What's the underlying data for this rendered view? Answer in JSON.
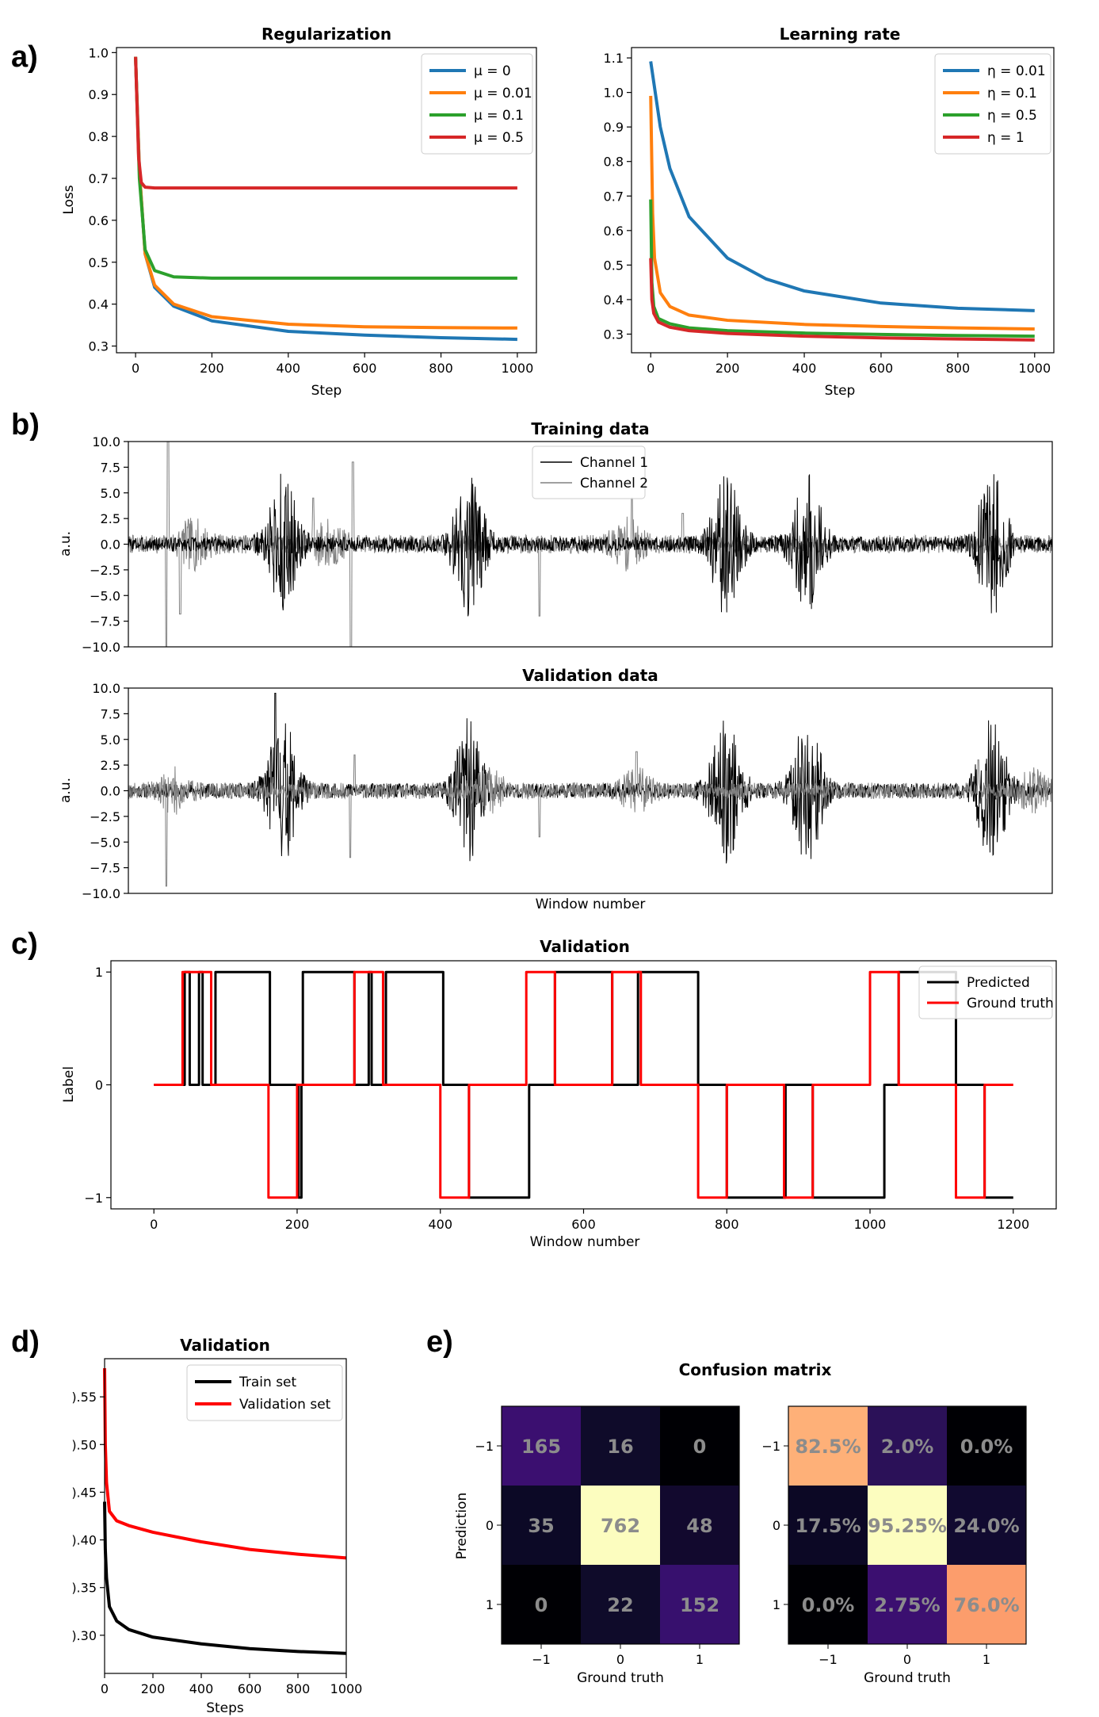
{
  "panel_letters": [
    "a)",
    "b)",
    "c)",
    "d)",
    "e)"
  ],
  "chart_data": [
    {
      "id": "a1",
      "type": "line",
      "title": "Regularization",
      "xlabel": "Step",
      "ylabel": "Loss",
      "xlim": [
        0,
        1000
      ],
      "ylim": [
        0.3,
        1.0
      ],
      "xticks": [
        0,
        200,
        400,
        600,
        800,
        1000
      ],
      "yticks": [
        0.3,
        0.4,
        0.5,
        0.6,
        0.7,
        0.8,
        0.9,
        1.0
      ],
      "ytick_labels": [
        "0.3",
        "0.4",
        "0.5",
        "0.6",
        "0.7",
        "0.8",
        "0.9",
        "1.0"
      ],
      "legend_position": "top-right",
      "series": [
        {
          "name": "μ = 0",
          "color": "#1f77b4",
          "x": [
            0,
            10,
            25,
            50,
            100,
            200,
            400,
            600,
            800,
            1000
          ],
          "y": [
            0.99,
            0.72,
            0.52,
            0.44,
            0.395,
            0.36,
            0.335,
            0.326,
            0.32,
            0.316
          ]
        },
        {
          "name": "μ = 0.01",
          "color": "#ff7f0e",
          "x": [
            0,
            10,
            25,
            50,
            100,
            200,
            400,
            600,
            800,
            1000
          ],
          "y": [
            0.99,
            0.72,
            0.52,
            0.445,
            0.4,
            0.37,
            0.352,
            0.346,
            0.344,
            0.343
          ]
        },
        {
          "name": "μ = 0.1",
          "color": "#2ca02c",
          "x": [
            0,
            10,
            25,
            50,
            100,
            200,
            400,
            600,
            800,
            1000
          ],
          "y": [
            0.99,
            0.7,
            0.53,
            0.48,
            0.465,
            0.462,
            0.462,
            0.462,
            0.462,
            0.462
          ]
        },
        {
          "name": "μ = 0.5",
          "color": "#d62728",
          "x": [
            0,
            8,
            15,
            25,
            50,
            100,
            400,
            1000
          ],
          "y": [
            0.99,
            0.75,
            0.69,
            0.679,
            0.677,
            0.677,
            0.677,
            0.677
          ]
        }
      ]
    },
    {
      "id": "a2",
      "type": "line",
      "title": "Learning rate",
      "xlabel": "Step",
      "ylabel": "",
      "xlim": [
        0,
        1000
      ],
      "ylim": [
        0.3,
        1.1
      ],
      "xticks": [
        0,
        200,
        400,
        600,
        800,
        1000
      ],
      "yticks": [
        0.3,
        0.4,
        0.5,
        0.6,
        0.7,
        0.8,
        0.9,
        1.0,
        1.1
      ],
      "ytick_labels": [
        "0.3",
        "0.4",
        "0.5",
        "0.6",
        "0.7",
        "0.8",
        "0.9",
        "1.0",
        "1.1"
      ],
      "legend_position": "top-right",
      "series": [
        {
          "name": "η = 0.01",
          "color": "#1f77b4",
          "x": [
            0,
            25,
            50,
            100,
            200,
            300,
            400,
            600,
            800,
            1000
          ],
          "y": [
            1.09,
            0.9,
            0.78,
            0.64,
            0.52,
            0.46,
            0.425,
            0.39,
            0.375,
            0.368
          ]
        },
        {
          "name": "η = 0.1",
          "color": "#ff7f0e",
          "x": [
            0,
            5,
            10,
            25,
            50,
            100,
            200,
            400,
            600,
            800,
            1000
          ],
          "y": [
            0.99,
            0.65,
            0.52,
            0.42,
            0.38,
            0.355,
            0.34,
            0.328,
            0.322,
            0.318,
            0.315
          ]
        },
        {
          "name": "η = 0.5",
          "color": "#2ca02c",
          "x": [
            0,
            3,
            8,
            20,
            50,
            100,
            200,
            400,
            600,
            800,
            1000
          ],
          "y": [
            0.69,
            0.45,
            0.38,
            0.345,
            0.33,
            0.318,
            0.31,
            0.303,
            0.299,
            0.296,
            0.294
          ]
        },
        {
          "name": "η = 1",
          "color": "#d62728",
          "x": [
            0,
            3,
            8,
            20,
            50,
            100,
            200,
            400,
            600,
            800,
            1000
          ],
          "y": [
            0.52,
            0.4,
            0.36,
            0.335,
            0.32,
            0.31,
            0.302,
            0.294,
            0.289,
            0.286,
            0.283
          ]
        }
      ]
    },
    {
      "id": "b1",
      "type": "line",
      "title": "Training data",
      "xlabel": "",
      "ylabel": "a.u.",
      "ylim": [
        -10.0,
        10.0
      ],
      "yticks": [
        -10,
        -7.5,
        -5,
        -2.5,
        0,
        2.5,
        5,
        7.5,
        10
      ],
      "ytick_labels": [
        "−10.0",
        "−7.5",
        "−5.0",
        "−2.5",
        "0.0",
        "2.5",
        "5.0",
        "7.5",
        "10.0"
      ],
      "legend_position": "top-center",
      "series": [
        {
          "name": "Channel 1",
          "color": "#000000"
        },
        {
          "name": "Channel 2",
          "color": "#808080"
        }
      ]
    },
    {
      "id": "b2",
      "type": "line",
      "title": "Validation data",
      "xlabel": "Window number",
      "ylabel": "a.u.",
      "ylim": [
        -10.0,
        10.0
      ],
      "yticks": [
        -10,
        -7.5,
        -5,
        -2.5,
        0,
        2.5,
        5,
        7.5,
        10
      ],
      "ytick_labels": [
        "−10.0",
        "−7.5",
        "−5.0",
        "−2.5",
        "0.0",
        "2.5",
        "5.0",
        "7.5",
        "10.0"
      ],
      "series": [
        {
          "name": "Channel 1",
          "color": "#000000"
        },
        {
          "name": "Channel 2",
          "color": "#808080"
        }
      ]
    },
    {
      "id": "c",
      "type": "line",
      "title": "Validation",
      "xlabel": "Window number",
      "ylabel": "Label",
      "xlim": [
        -60,
        1260
      ],
      "ylim": [
        -1.1,
        1.1
      ],
      "xticks": [
        0,
        200,
        400,
        600,
        800,
        1000,
        1200
      ],
      "yticks": [
        -1,
        0,
        1
      ],
      "ytick_labels": [
        "−1",
        "0",
        "1"
      ],
      "legend_position": "top-right",
      "series": [
        {
          "name": "Predicted",
          "color": "#000000",
          "x": [
            0,
            43,
            43,
            50,
            50,
            63,
            63,
            68,
            68,
            86,
            86,
            162,
            162,
            202,
            202,
            206,
            206,
            208,
            208,
            280,
            280,
            300,
            300,
            304,
            304,
            324,
            324,
            404,
            404,
            440,
            440,
            524,
            524,
            560,
            560,
            640,
            640,
            676,
            676,
            760,
            760,
            800,
            800,
            882,
            882,
            920,
            920,
            1020,
            1020,
            1040,
            1040,
            1120,
            1120,
            1160,
            1160,
            1200
          ],
          "y": [
            0,
            0,
            1,
            1,
            0,
            0,
            1,
            1,
            0,
            0,
            1,
            1,
            0,
            0,
            -1,
            -1,
            0,
            0,
            1,
            1,
            0,
            0,
            1,
            1,
            0,
            0,
            1,
            1,
            0,
            0,
            -1,
            -1,
            0,
            0,
            1,
            1,
            0,
            0,
            1,
            1,
            0,
            0,
            -1,
            -1,
            0,
            0,
            -1,
            -1,
            0,
            0,
            1,
            1,
            0,
            0,
            -1,
            -1
          ]
        },
        {
          "name": "Ground truth",
          "color": "#ff0000",
          "x": [
            0,
            40,
            40,
            80,
            80,
            160,
            160,
            200,
            200,
            280,
            280,
            320,
            320,
            400,
            400,
            440,
            440,
            520,
            520,
            560,
            560,
            640,
            640,
            680,
            680,
            760,
            760,
            800,
            800,
            880,
            880,
            920,
            920,
            1000,
            1000,
            1040,
            1040,
            1120,
            1120,
            1160,
            1160,
            1200
          ],
          "y": [
            0,
            0,
            1,
            1,
            0,
            0,
            -1,
            -1,
            0,
            0,
            1,
            1,
            0,
            0,
            -1,
            -1,
            0,
            0,
            1,
            1,
            0,
            0,
            1,
            1,
            0,
            0,
            -1,
            -1,
            0,
            0,
            -1,
            -1,
            0,
            0,
            1,
            1,
            0,
            0,
            -1,
            -1,
            0,
            0
          ]
        }
      ]
    },
    {
      "id": "d",
      "type": "line",
      "title": "Validation",
      "xlabel": "Steps",
      "ylabel": "",
      "xlim": [
        0,
        1000
      ],
      "ylim": [
        0.26,
        0.59
      ],
      "xticks": [
        0,
        200,
        400,
        600,
        800,
        1000
      ],
      "yticks": [
        0.3,
        0.35,
        0.4,
        0.45,
        0.5,
        0.55
      ],
      "ytick_labels": [
        ").30",
        ").35",
        ").40",
        ").45",
        ").50",
        ").55"
      ],
      "legend_position": "top-right",
      "series": [
        {
          "name": "Train set",
          "color": "#000000",
          "x": [
            0,
            3,
            8,
            20,
            50,
            100,
            200,
            400,
            600,
            800,
            1000
          ],
          "y": [
            0.44,
            0.39,
            0.36,
            0.33,
            0.315,
            0.306,
            0.298,
            0.291,
            0.286,
            0.283,
            0.281
          ]
        },
        {
          "name": "Validation set",
          "color": "#ff0000",
          "x": [
            0,
            3,
            8,
            20,
            50,
            100,
            200,
            400,
            600,
            800,
            1000
          ],
          "y": [
            0.58,
            0.5,
            0.46,
            0.43,
            0.42,
            0.415,
            0.408,
            0.398,
            0.39,
            0.385,
            0.381
          ]
        }
      ]
    },
    {
      "id": "e",
      "type": "heatmap",
      "title": "Confusion matrix",
      "xlabel": "Ground truth",
      "ylabel": "Prediction",
      "xtick_labels": [
        "−1",
        "0",
        "1"
      ],
      "ytick_labels": [
        "−1",
        "0",
        "1"
      ],
      "counts": [
        [
          "165",
          "16",
          "0"
        ],
        [
          "35",
          "762",
          "48"
        ],
        [
          "0",
          "22",
          "152"
        ]
      ],
      "count_colors": [
        [
          "#3b0f70",
          "#0f0b2a",
          "#000004"
        ],
        [
          "#0c0926",
          "#fcfdbf",
          "#12092e"
        ],
        [
          "#000004",
          "#0f0b2a",
          "#37106e"
        ]
      ],
      "percentages": [
        [
          "82.5%",
          "2.0%",
          "0.0%"
        ],
        [
          "17.5%",
          "95.25%",
          "24.0%"
        ],
        [
          "0.0%",
          "2.75%",
          "76.0%"
        ]
      ],
      "percentage_colors": [
        [
          "#feb078",
          "#2b1158",
          "#000004"
        ],
        [
          "#0c0825",
          "#fcfdbf",
          "#110a30"
        ],
        [
          "#000004",
          "#3b0f70",
          "#fc9d6c"
        ]
      ]
    }
  ]
}
